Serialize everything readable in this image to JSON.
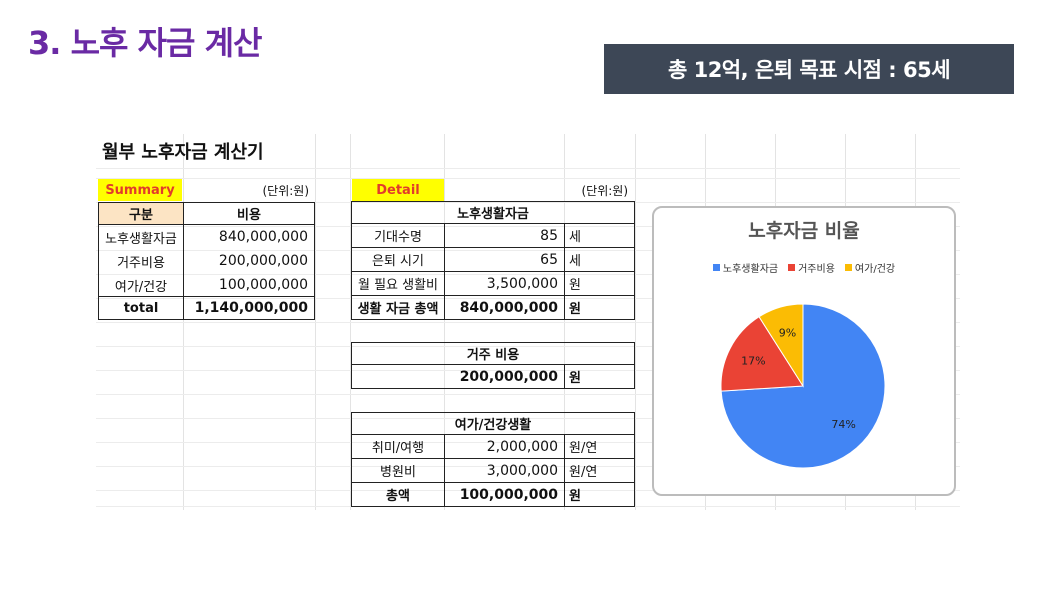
{
  "slide": {
    "title": "3. 노후 자금 계산",
    "banner": "총 12억, 은퇴 목표 시점  : 65세"
  },
  "sheet": {
    "title": "월부 노후자금 계산기",
    "summary": {
      "label": "Summary",
      "unit": "(단위:원)",
      "headers": [
        "구분",
        "비용"
      ],
      "rows": [
        {
          "name": "노후생활자금",
          "value": "840,000,000"
        },
        {
          "name": "거주비용",
          "value": "200,000,000"
        },
        {
          "name": "여가/건강",
          "value": "100,000,000"
        }
      ],
      "total": {
        "name": "total",
        "value": "1,140,000,000"
      }
    },
    "detail": {
      "label": "Detail",
      "unit": "(단위:원)",
      "living": {
        "header": "노후생활자금",
        "rows": [
          {
            "name": "기대수명",
            "value": "85",
            "unit": "세"
          },
          {
            "name": "은퇴 시기",
            "value": "65",
            "unit": "세"
          },
          {
            "name": "월 필요 생활비",
            "value": "3,500,000",
            "unit": "원"
          }
        ],
        "total": {
          "name": "생활 자금 총액",
          "value": "840,000,000",
          "unit": "원"
        }
      },
      "housing": {
        "header": "거주 비용",
        "value": "200,000,000",
        "unit": "원"
      },
      "leisure": {
        "header": "여가/건강생활",
        "rows": [
          {
            "name": "취미/여행",
            "value": "2,000,000",
            "unit": "원/연"
          },
          {
            "name": "병원비",
            "value": "3,000,000",
            "unit": "원/연"
          }
        ],
        "total": {
          "name": "총액",
          "value": "100,000,000",
          "unit": "원"
        }
      }
    }
  },
  "chart_data": {
    "type": "pie",
    "title": "노후자금 비율",
    "categories": [
      "노후생활자금",
      "거주비용",
      "여가/건강"
    ],
    "values": [
      74,
      17,
      9
    ],
    "labels": [
      "74%",
      "17%",
      "9%"
    ],
    "colors": [
      "#4285f4",
      "#ea4335",
      "#fbbc04"
    ],
    "legend": "top"
  }
}
